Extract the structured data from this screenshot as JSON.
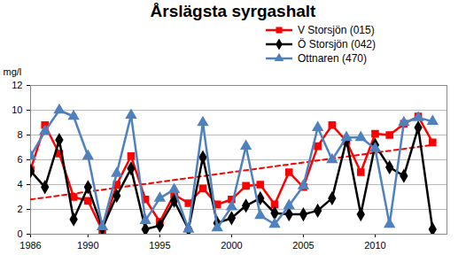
{
  "chart_data": {
    "type": "line",
    "title": "Årslägsta syrgashalt",
    "y_label": "mg/l",
    "x": [
      1986,
      1987,
      1988,
      1989,
      1990,
      1991,
      1992,
      1993,
      1994,
      1995,
      1996,
      1997,
      1998,
      1999,
      2000,
      2001,
      2002,
      2003,
      2004,
      2005,
      2006,
      2007,
      2008,
      2009,
      2010,
      2011,
      2012,
      2013,
      2014
    ],
    "series": [
      {
        "name": "V Storsjön (015)",
        "color": "#ff0000",
        "marker": "square",
        "values": [
          5.2,
          8.8,
          6.5,
          3.0,
          2.7,
          0.3,
          4.0,
          6.3,
          2.8,
          1.0,
          3.2,
          2.5,
          3.7,
          2.4,
          2.8,
          3.9,
          4.0,
          2.4,
          5.0,
          3.8,
          7.1,
          8.8,
          7.5,
          5.0,
          8.1,
          8.0,
          8.9,
          9.5,
          7.4
        ]
      },
      {
        "name": "Ö Storsjön (042)",
        "color": "#000000",
        "marker": "diamond",
        "values": [
          5.1,
          3.8,
          7.6,
          1.2,
          3.8,
          0.5,
          3.1,
          5.3,
          0.4,
          0.7,
          2.7,
          0.4,
          6.2,
          0.9,
          1.3,
          2.3,
          2.9,
          1.7,
          1.6,
          1.6,
          1.9,
          2.9,
          7.6,
          1.6,
          7.2,
          5.4,
          4.7,
          8.6,
          0.4
        ]
      },
      {
        "name": "Ottnaren (470)",
        "color": "#4f81bd",
        "marker": "triangle",
        "values": [
          6.3,
          8.3,
          10.0,
          9.5,
          6.3,
          0.6,
          4.9,
          9.6,
          1.1,
          2.9,
          3.6,
          0.4,
          9.0,
          0.5,
          2.2,
          7.1,
          1.5,
          0.8,
          2.3,
          3.9,
          8.6,
          6.0,
          7.8,
          7.8,
          6.9,
          0.8,
          9.0,
          9.4,
          9.1
        ]
      }
    ],
    "trendline": {
      "x": [
        1986,
        2014
      ],
      "values": [
        2.8,
        7.2
      ],
      "color": "#ff0000",
      "line_style": "dashed"
    },
    "xlim": [
      1986,
      2015
    ],
    "xticks": [
      1986,
      1990,
      1995,
      2000,
      2005,
      2010
    ],
    "ylim": [
      0,
      12
    ],
    "yticks": [
      0,
      2,
      4,
      6,
      8,
      10,
      12
    ],
    "grid": true,
    "legend": "top-right"
  }
}
